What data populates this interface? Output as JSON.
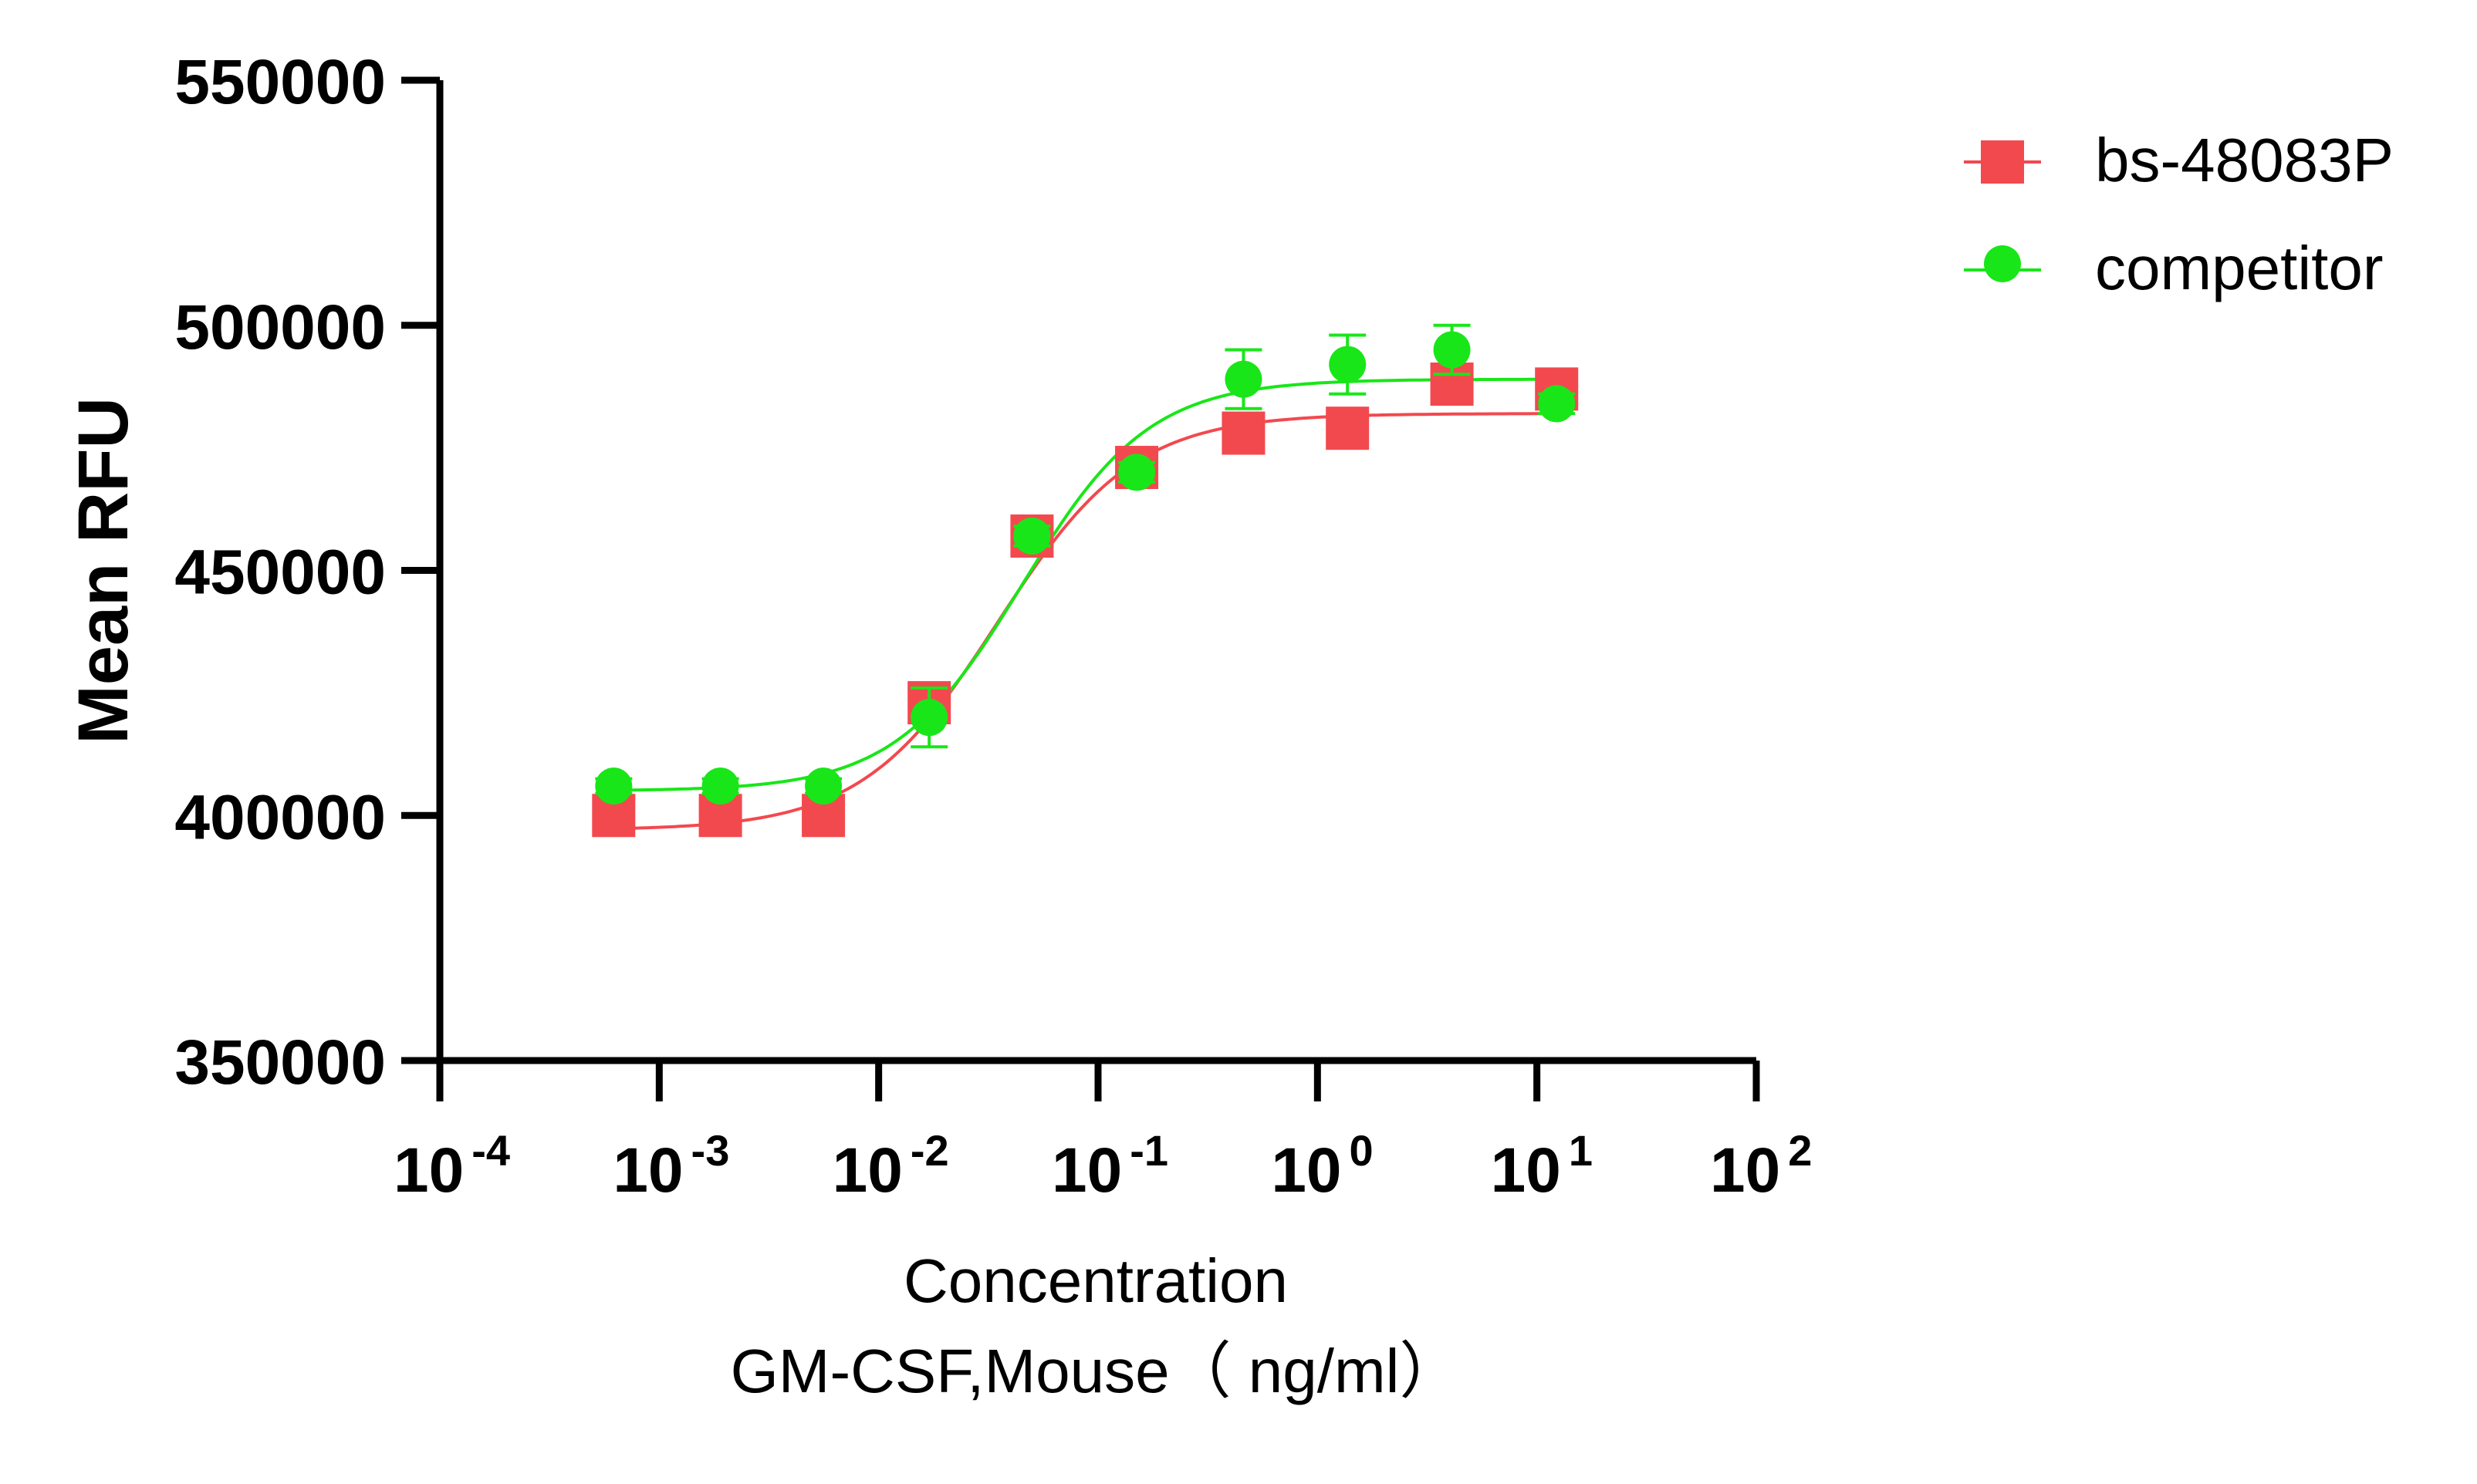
{
  "chart_data": {
    "type": "scatter",
    "xscale": "log",
    "xlim": [
      0.0001,
      100
    ],
    "ylim": [
      350000,
      550000
    ],
    "xlabel_line1": "Concentration",
    "xlabel_line2": "GM-CSF,Mouse（ ng/ml）",
    "ylabel": "Mean RFU",
    "y_ticks": [
      350000,
      400000,
      450000,
      500000,
      550000
    ],
    "y_tick_labels": [
      "350000",
      "400000",
      "450000",
      "500000",
      "550000"
    ],
    "x_ticks": [
      {
        "value": 0.0001,
        "base": "10",
        "exp": "-4"
      },
      {
        "value": 0.001,
        "base": "10",
        "exp": "-3"
      },
      {
        "value": 0.01,
        "base": "10",
        "exp": "-2"
      },
      {
        "value": 0.1,
        "base": "10",
        "exp": "-1"
      },
      {
        "value": 1,
        "base": "10",
        "exp": "0"
      },
      {
        "value": 10,
        "base": "10",
        "exp": "1"
      },
      {
        "value": 100,
        "base": "10",
        "exp": "2"
      }
    ],
    "legend_position": "top-right",
    "series": [
      {
        "name": "bs-48083P",
        "color": "#f2494f",
        "marker": "square",
        "x": [
          0.00062,
          0.0019,
          0.0056,
          0.017,
          0.05,
          0.15,
          0.46,
          1.37,
          4.1,
          12.3
        ],
        "y": [
          400000,
          400000,
          400000,
          423000,
          457000,
          471000,
          478000,
          479000,
          488000,
          487000
        ],
        "err": [
          1500,
          1500,
          1500,
          2000,
          2000,
          2000,
          2000,
          2000,
          2000,
          1500
        ],
        "fit": {
          "bottom": 397000,
          "top": 482000,
          "ec50": 0.035,
          "hill": 1.4
        }
      },
      {
        "name": "competitor",
        "color": "#19e619",
        "marker": "circle",
        "x": [
          0.00062,
          0.0019,
          0.0056,
          0.017,
          0.05,
          0.15,
          0.46,
          1.37,
          4.1,
          12.3
        ],
        "y": [
          406000,
          406000,
          406000,
          420000,
          457000,
          470000,
          489000,
          492000,
          495000,
          484000
        ],
        "err": [
          1500,
          1500,
          1500,
          6000,
          2000,
          2000,
          6000,
          6000,
          5000,
          2000
        ],
        "fit": {
          "bottom": 405000,
          "top": 489000,
          "ec50": 0.045,
          "hill": 1.5
        }
      }
    ]
  }
}
